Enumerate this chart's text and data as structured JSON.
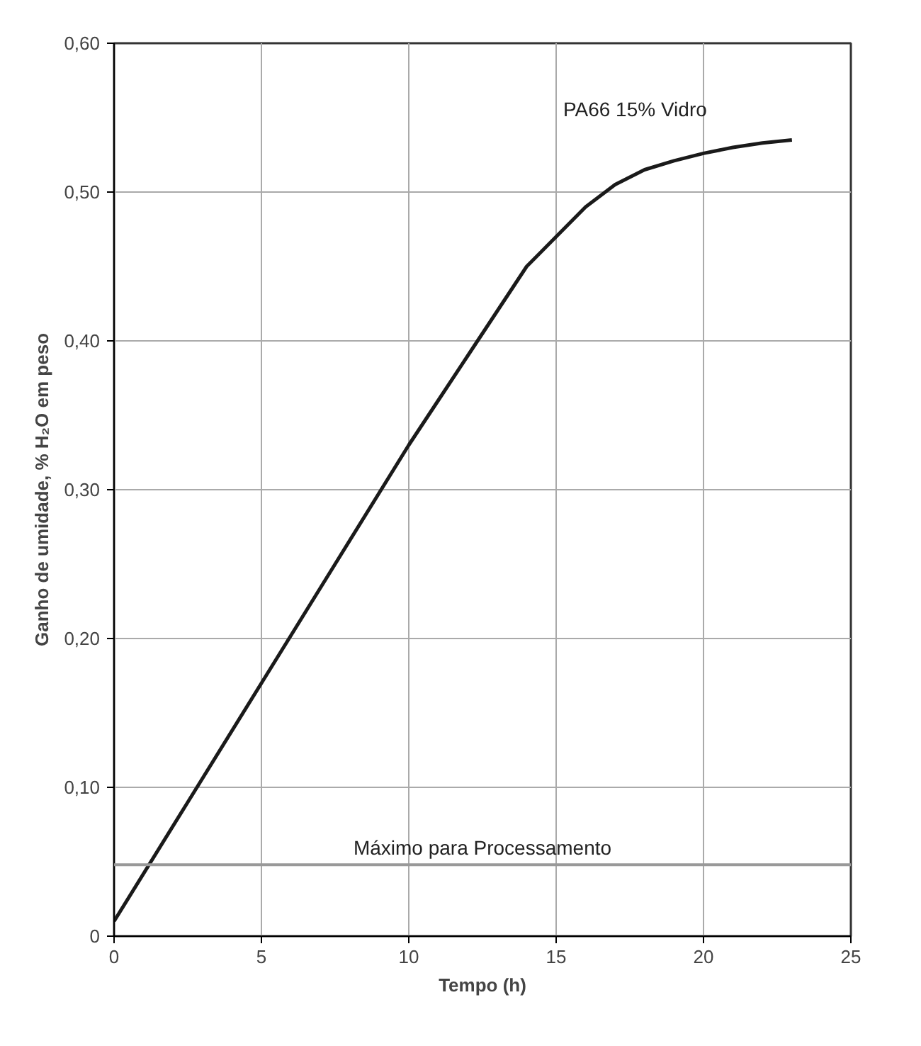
{
  "chart_data": {
    "type": "line",
    "xlabel": "Tempo (h)",
    "ylabel": "Ganho de umidade, % H₂O em peso",
    "xlim": [
      0,
      25
    ],
    "xticks": [
      0,
      5,
      10,
      15,
      20,
      25
    ],
    "ylim": [
      0,
      0.6
    ],
    "yticks": [
      0,
      {
        "value": 0.1,
        "label": "0,10"
      },
      {
        "value": 0.2,
        "label": "0,20"
      },
      {
        "value": 0.3,
        "label": "0,30"
      },
      {
        "value": 0.4,
        "label": "0,40"
      },
      {
        "value": 0.5,
        "label": "0,50"
      },
      {
        "value": 0.6,
        "label": "0,60"
      }
    ],
    "grid": true,
    "marker": "none",
    "line_style": "solid",
    "series": [
      {
        "name": "PA66 15% Vidro",
        "color": "#1a1a1a",
        "x": [
          0,
          2.5,
          5,
          7.5,
          10,
          11,
          12,
          13,
          14,
          15,
          16,
          17,
          18,
          19,
          20,
          21,
          22,
          23
        ],
        "values": [
          0.01,
          0.09,
          0.17,
          0.25,
          0.33,
          0.36,
          0.39,
          0.42,
          0.45,
          0.47,
          0.49,
          0.505,
          0.515,
          0.521,
          0.526,
          0.53,
          0.533,
          0.535
        ]
      }
    ],
    "ref_lines": [
      {
        "axis": "y",
        "value": 0.048,
        "label": "Máximo para Processamento",
        "color": "#999999",
        "line_style": "solid"
      }
    ]
  }
}
